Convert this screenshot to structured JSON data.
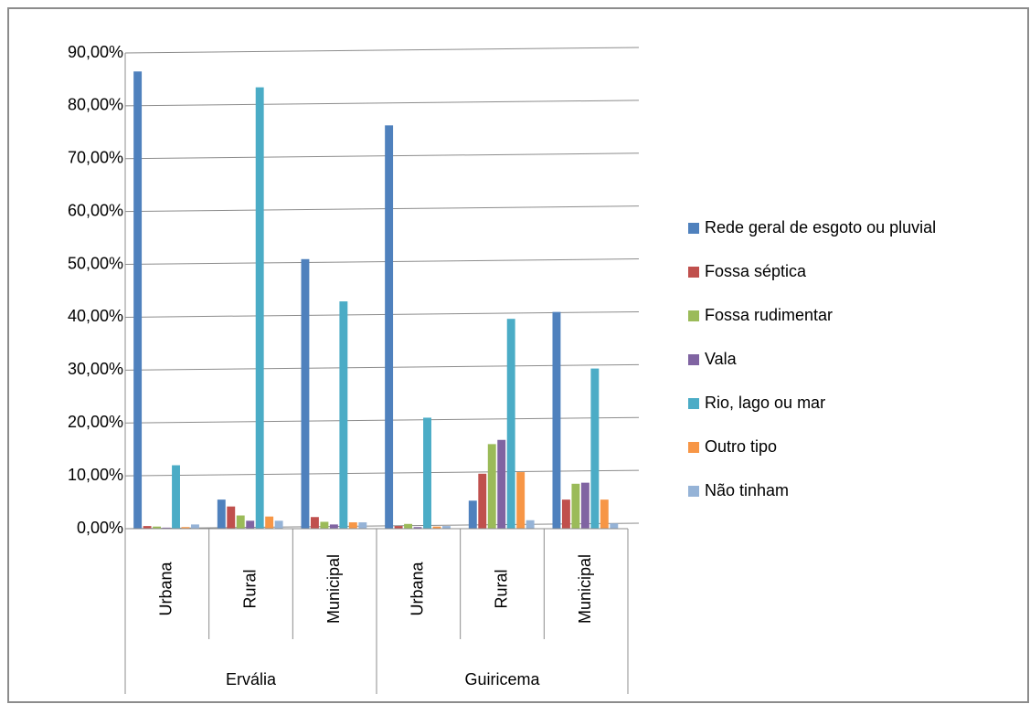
{
  "chart_data": {
    "type": "bar",
    "groups": [
      {
        "name": "Ervália",
        "categories": [
          "Urbana",
          "Rural",
          "Municipal"
        ]
      },
      {
        "name": "Guiricema",
        "categories": [
          "Urbana",
          "Rural",
          "Municipal"
        ]
      }
    ],
    "series": [
      {
        "name": "Rede geral de esgoto ou pluvial",
        "color": "#4f81bd",
        "values": [
          86.5,
          5.5,
          51,
          76.3,
          5.3,
          41
        ]
      },
      {
        "name": "Fossa séptica",
        "color": "#c0504d",
        "values": [
          0.5,
          4.2,
          2.2,
          0.5,
          10.4,
          5.5
        ]
      },
      {
        "name": "Fossa rudimentar",
        "color": "#9bbb59",
        "values": [
          0.4,
          2.5,
          1.3,
          0.9,
          16,
          8.5
        ]
      },
      {
        "name": "Vala",
        "color": "#8064a2",
        "values": [
          0.2,
          1.5,
          0.8,
          0.3,
          16.8,
          8.7
        ]
      },
      {
        "name": "Rio, lago ou mar",
        "color": "#4bacc6",
        "values": [
          12,
          83.5,
          43,
          21,
          39.7,
          30.3
        ]
      },
      {
        "name": "Outro tipo",
        "color": "#f79646",
        "values": [
          0.3,
          2.3,
          1.2,
          0.4,
          10.7,
          5.5
        ]
      },
      {
        "name": "Não tinham",
        "color": "#95b3d7",
        "values": [
          0.8,
          1.5,
          1.2,
          0.5,
          1.6,
          1
        ]
      }
    ],
    "ylim": [
      0,
      90
    ],
    "yticks": [
      {
        "value": 0,
        "label": "0,00%"
      },
      {
        "value": 10,
        "label": "10,00%"
      },
      {
        "value": 20,
        "label": "20,00%"
      },
      {
        "value": 30,
        "label": "30,00%"
      },
      {
        "value": 40,
        "label": "40,00%"
      },
      {
        "value": 50,
        "label": "50,00%"
      },
      {
        "value": 60,
        "label": "60,00%"
      },
      {
        "value": 70,
        "label": "70,00%"
      },
      {
        "value": 80,
        "label": "80,00%"
      },
      {
        "value": 90,
        "label": "90,00%"
      }
    ],
    "grid": true
  }
}
